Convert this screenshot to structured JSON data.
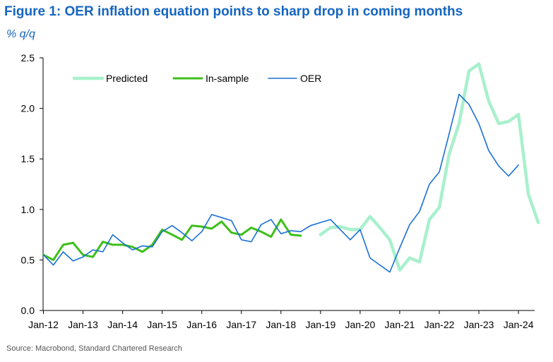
{
  "title": "Figure 1: OER inflation equation points to sharp drop in coming months",
  "subtitle": "% q/q",
  "source": "Source: Macrobond, Standard Chartered Research",
  "colors": {
    "title": "#1565c0",
    "predicted": "#a8f0cc",
    "insample": "#3dbf1a",
    "oer": "#1a6fd6"
  },
  "chart_data": {
    "type": "line",
    "ylabel": "% q/q",
    "ylim": [
      0,
      2.5
    ],
    "yticks": [
      "0.0",
      "0.5",
      "1.0",
      "1.5",
      "2.0",
      "2.5"
    ],
    "xticks": [
      "Jan-12",
      "Jan-13",
      "Jan-14",
      "Jan-15",
      "Jan-16",
      "Jan-17",
      "Jan-18",
      "Jan-19",
      "Jan-20",
      "Jan-21",
      "Jan-22",
      "Jan-23",
      "Jan-24"
    ],
    "xstart": "2012-Q1",
    "legend_position": "top-left",
    "grid": false,
    "series": [
      {
        "name": "Predicted",
        "color": "#a8f0cc",
        "start": "2019-Q1",
        "values": [
          0.75,
          0.82,
          0.83,
          0.8,
          0.8,
          0.93,
          0.82,
          0.7,
          0.4,
          0.52,
          0.48,
          0.9,
          1.02,
          1.55,
          1.85,
          2.37,
          2.44,
          2.07,
          1.85,
          1.87,
          1.94,
          1.15,
          0.87
        ]
      },
      {
        "name": "In-sample",
        "color": "#3dbf1a",
        "start": "2012-Q1",
        "values": [
          0.55,
          0.5,
          0.65,
          0.67,
          0.55,
          0.53,
          0.68,
          0.65,
          0.65,
          0.63,
          0.58,
          0.65,
          0.8,
          0.75,
          0.7,
          0.84,
          0.83,
          0.81,
          0.88,
          0.77,
          0.75,
          0.82,
          0.78,
          0.73,
          0.9,
          0.75,
          0.74
        ]
      },
      {
        "name": "OER",
        "color": "#1a6fd6",
        "start": "2012-Q1",
        "values": [
          0.55,
          0.45,
          0.58,
          0.49,
          0.53,
          0.6,
          0.58,
          0.75,
          0.67,
          0.6,
          0.64,
          0.63,
          0.78,
          0.84,
          0.77,
          0.69,
          0.78,
          0.95,
          0.92,
          0.89,
          0.7,
          0.68,
          0.85,
          0.9,
          0.76,
          0.79,
          0.78,
          0.84,
          0.87,
          0.9,
          0.8,
          0.7,
          0.8,
          0.52,
          0.45,
          0.38,
          0.62,
          0.85,
          0.98,
          1.25,
          1.37,
          1.75,
          2.14,
          2.04,
          1.85,
          1.58,
          1.43,
          1.33,
          1.44
        ]
      }
    ]
  }
}
